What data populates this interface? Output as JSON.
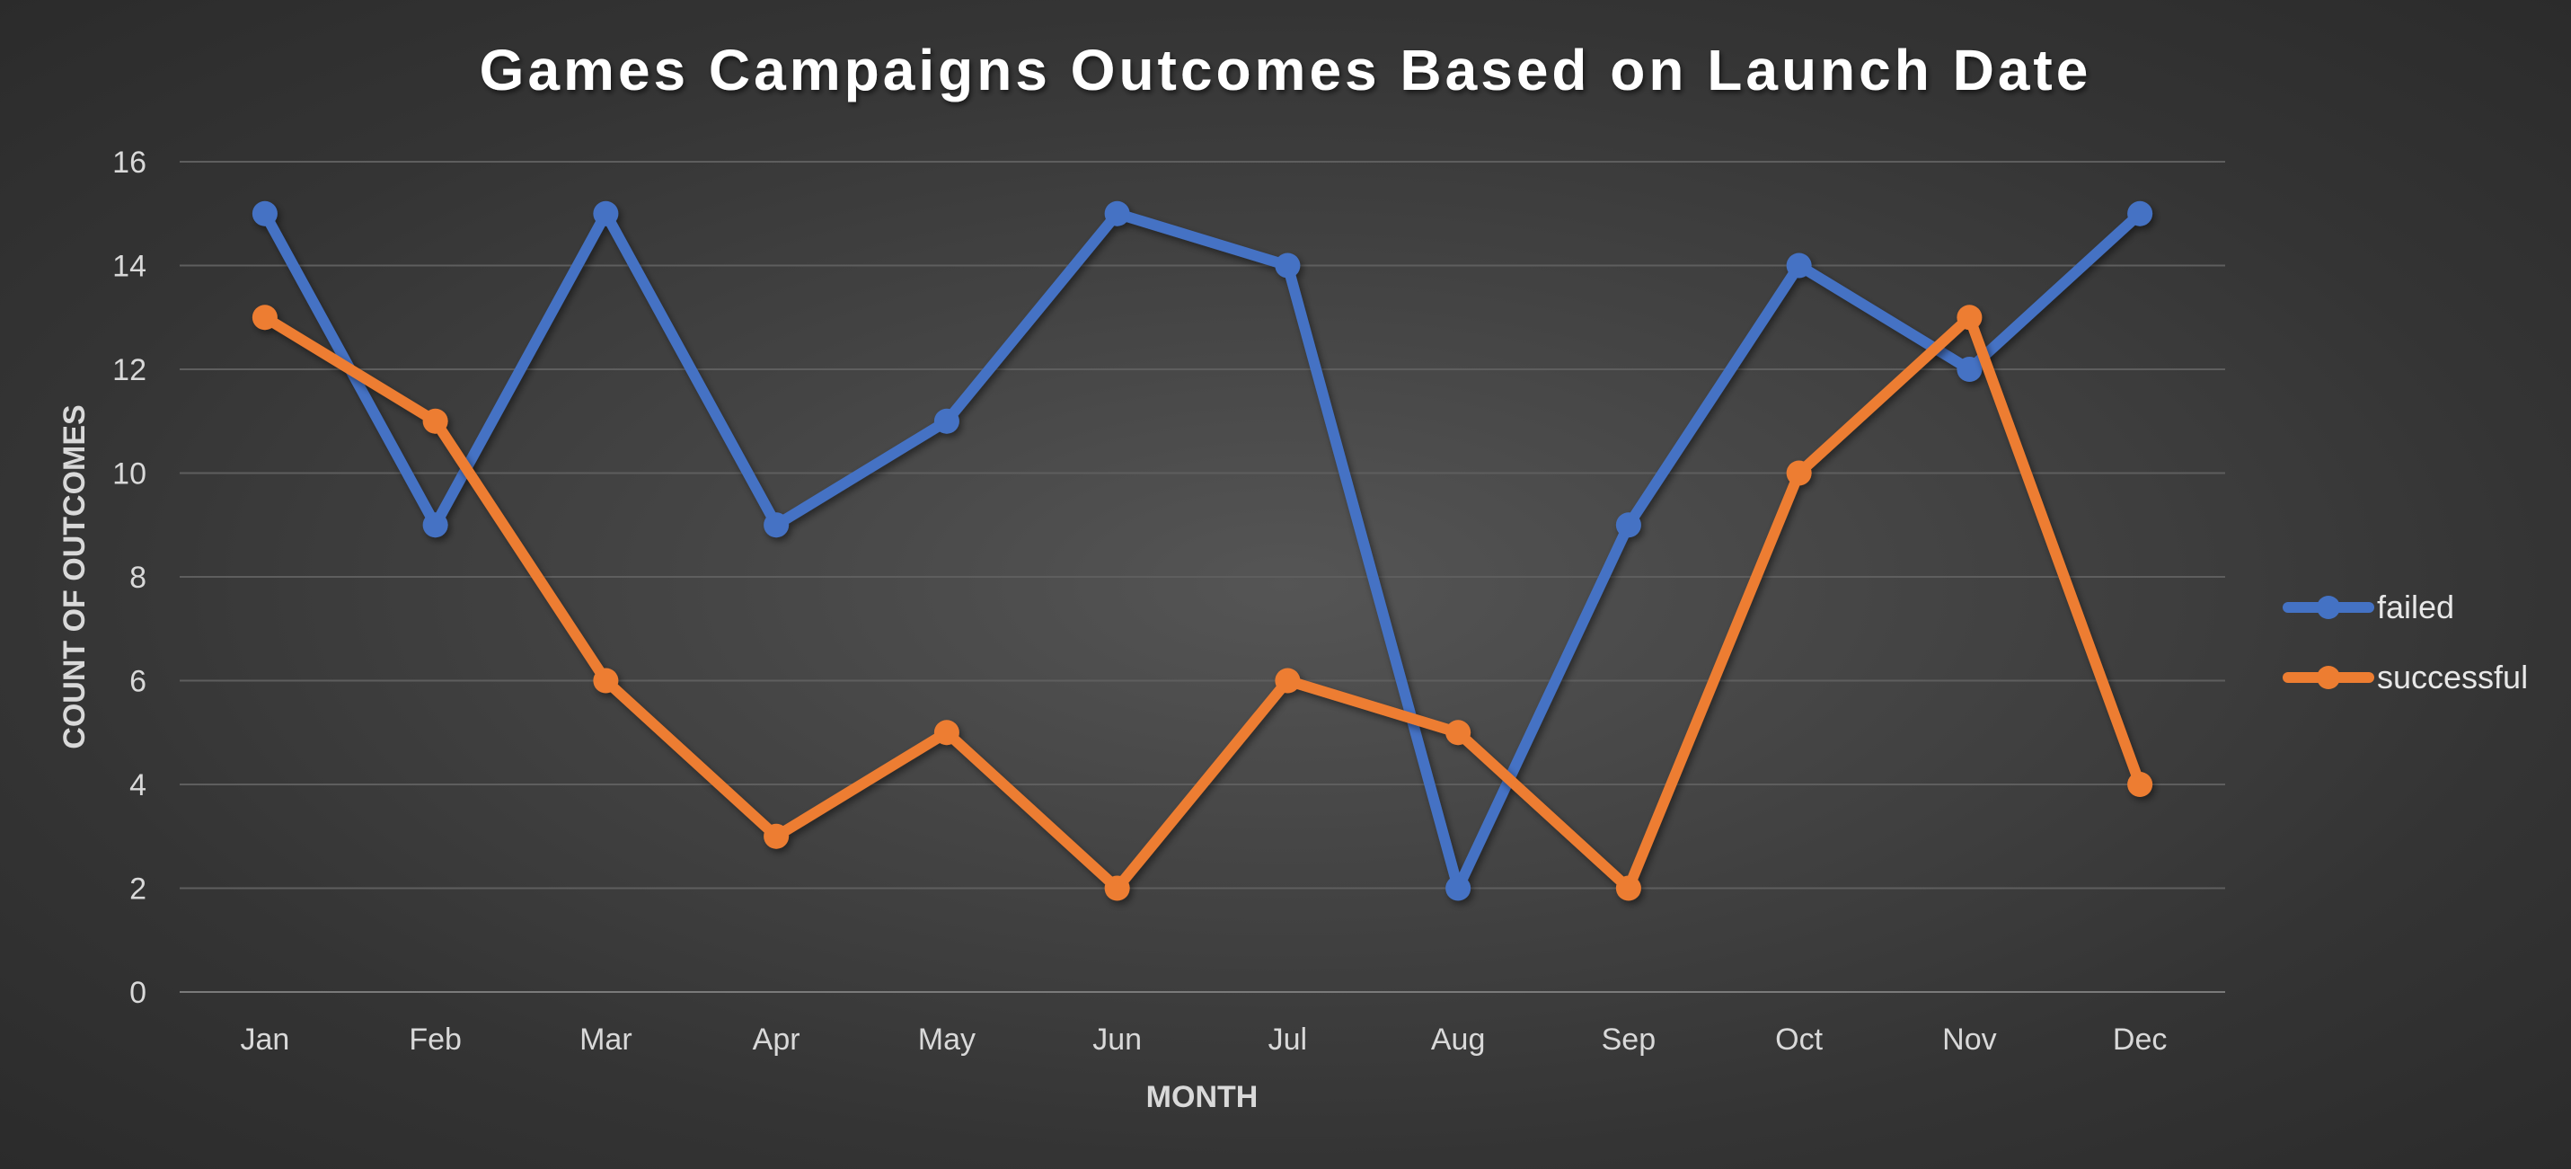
{
  "chart_data": {
    "type": "line",
    "title": "Games Campaigns Outcomes Based on Launch Date",
    "xlabel": "MONTH",
    "ylabel": "COUNT OF OUTCOMES",
    "categories": [
      "Jan",
      "Feb",
      "Mar",
      "Apr",
      "May",
      "Jun",
      "Jul",
      "Aug",
      "Sep",
      "Oct",
      "Nov",
      "Dec"
    ],
    "ylim": [
      0,
      16
    ],
    "yticks": [
      0,
      2,
      4,
      6,
      8,
      10,
      12,
      14,
      16
    ],
    "grid": true,
    "legend_position": "right",
    "series": [
      {
        "name": "failed",
        "color": "#4472c4",
        "values": [
          15,
          9,
          15,
          9,
          11,
          15,
          14,
          2,
          9,
          14,
          12,
          15
        ]
      },
      {
        "name": "successful",
        "color": "#ed7d31",
        "values": [
          13,
          11,
          6,
          3,
          5,
          2,
          6,
          5,
          2,
          10,
          13,
          4
        ]
      }
    ]
  }
}
